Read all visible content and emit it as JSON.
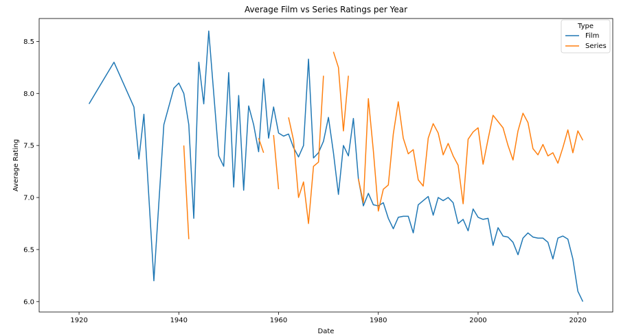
{
  "chart_data": {
    "type": "line",
    "title": "Average Film vs Series Ratings per Year",
    "xlabel": "Date",
    "ylabel": "Average Rating",
    "xlim": [
      1912,
      2027
    ],
    "ylim": [
      5.9,
      8.72
    ],
    "x_ticks": [
      1920,
      1940,
      1960,
      1980,
      2000,
      2020
    ],
    "y_ticks": [
      6.0,
      6.5,
      7.0,
      7.5,
      8.0,
      8.5
    ],
    "x_tick_labels": [
      "1920",
      "1940",
      "1960",
      "1980",
      "2000",
      "2020"
    ],
    "y_tick_labels": [
      "6.0",
      "6.5",
      "7.0",
      "7.5",
      "8.0",
      "8.5"
    ],
    "legend": {
      "title": "Type",
      "placement": "top-right"
    },
    "series": [
      {
        "name": "Film",
        "color": "#1f77b4",
        "segments": [
          [
            [
              1922,
              7.9
            ],
            [
              1927,
              8.3
            ],
            [
              1931,
              7.87
            ],
            [
              1932,
              7.37
            ],
            [
              1933,
              7.8
            ],
            [
              1935,
              6.2
            ],
            [
              1937,
              7.7
            ],
            [
              1939,
              8.05
            ],
            [
              1940,
              8.1
            ],
            [
              1941,
              8.0
            ],
            [
              1942,
              7.7
            ],
            [
              1943,
              6.8
            ],
            [
              1944,
              8.3
            ],
            [
              1945,
              7.9
            ],
            [
              1946,
              8.6
            ],
            [
              1948,
              7.4
            ],
            [
              1949,
              7.3
            ],
            [
              1950,
              8.2
            ],
            [
              1951,
              7.1
            ],
            [
              1952,
              7.98
            ],
            [
              1953,
              7.07
            ],
            [
              1954,
              7.88
            ],
            [
              1955,
              7.7
            ],
            [
              1956,
              7.44
            ],
            [
              1957,
              8.14
            ],
            [
              1958,
              7.57
            ],
            [
              1959,
              7.87
            ],
            [
              1960,
              7.62
            ],
            [
              1961,
              7.59
            ],
            [
              1962,
              7.61
            ],
            [
              1963,
              7.48
            ],
            [
              1964,
              7.39
            ],
            [
              1965,
              7.5
            ],
            [
              1966,
              8.33
            ],
            [
              1967,
              7.38
            ],
            [
              1968,
              7.43
            ],
            [
              1969,
              7.54
            ],
            [
              1970,
              7.77
            ],
            [
              1971,
              7.43
            ],
            [
              1972,
              7.03
            ],
            [
              1973,
              7.5
            ],
            [
              1974,
              7.4
            ],
            [
              1975,
              7.76
            ],
            [
              1976,
              7.18
            ],
            [
              1977,
              6.92
            ],
            [
              1978,
              7.04
            ],
            [
              1979,
              6.93
            ],
            [
              1980,
              6.92
            ],
            [
              1981,
              6.95
            ],
            [
              1982,
              6.8
            ],
            [
              1983,
              6.7
            ],
            [
              1984,
              6.81
            ],
            [
              1985,
              6.82
            ],
            [
              1986,
              6.82
            ],
            [
              1987,
              6.66
            ],
            [
              1988,
              6.93
            ],
            [
              1989,
              6.97
            ],
            [
              1990,
              7.01
            ],
            [
              1991,
              6.83
            ],
            [
              1992,
              7.0
            ],
            [
              1993,
              6.97
            ],
            [
              1994,
              7.0
            ],
            [
              1995,
              6.95
            ],
            [
              1996,
              6.75
            ],
            [
              1997,
              6.79
            ],
            [
              1998,
              6.68
            ],
            [
              1999,
              6.89
            ],
            [
              2000,
              6.81
            ],
            [
              2001,
              6.79
            ],
            [
              2002,
              6.8
            ],
            [
              2003,
              6.54
            ],
            [
              2004,
              6.71
            ],
            [
              2005,
              6.63
            ],
            [
              2006,
              6.62
            ],
            [
              2007,
              6.57
            ],
            [
              2008,
              6.45
            ],
            [
              2009,
              6.61
            ],
            [
              2010,
              6.66
            ],
            [
              2011,
              6.62
            ],
            [
              2012,
              6.61
            ],
            [
              2013,
              6.61
            ],
            [
              2014,
              6.57
            ],
            [
              2015,
              6.41
            ],
            [
              2016,
              6.61
            ],
            [
              2017,
              6.63
            ],
            [
              2018,
              6.6
            ],
            [
              2019,
              6.41
            ],
            [
              2020,
              6.1
            ],
            [
              2021,
              6.0
            ]
          ]
        ]
      },
      {
        "name": "Series",
        "color": "#ff7f0e",
        "segments": [
          [
            [
              1941,
              7.5
            ],
            [
              1942,
              6.6
            ]
          ],
          [
            [
              1956,
              7.57
            ],
            [
              1957,
              7.43
            ]
          ],
          [
            [
              1959,
              7.6
            ],
            [
              1960,
              7.08
            ]
          ],
          [
            [
              1962,
              7.77
            ],
            [
              1963,
              7.55
            ],
            [
              1964,
              7.0
            ],
            [
              1965,
              7.15
            ],
            [
              1966,
              6.75
            ],
            [
              1967,
              7.3
            ],
            [
              1968,
              7.34
            ],
            [
              1969,
              8.17
            ]
          ],
          [
            [
              1971,
              8.4
            ],
            [
              1972,
              8.25
            ],
            [
              1973,
              7.64
            ],
            [
              1974,
              8.17
            ]
          ],
          [
            [
              1976,
              7.18
            ],
            [
              1977,
              6.95
            ],
            [
              1978,
              7.95
            ],
            [
              1979,
              7.45
            ],
            [
              1980,
              6.87
            ],
            [
              1981,
              7.08
            ],
            [
              1982,
              7.12
            ],
            [
              1983,
              7.61
            ],
            [
              1984,
              7.92
            ],
            [
              1985,
              7.57
            ],
            [
              1986,
              7.42
            ],
            [
              1987,
              7.46
            ],
            [
              1988,
              7.17
            ],
            [
              1989,
              7.11
            ],
            [
              1990,
              7.57
            ],
            [
              1991,
              7.71
            ],
            [
              1992,
              7.62
            ],
            [
              1993,
              7.41
            ],
            [
              1994,
              7.52
            ],
            [
              1995,
              7.4
            ],
            [
              1996,
              7.31
            ],
            [
              1997,
              6.94
            ],
            [
              1998,
              7.56
            ],
            [
              1999,
              7.63
            ],
            [
              2000,
              7.67
            ],
            [
              2001,
              7.32
            ],
            [
              2002,
              7.56
            ],
            [
              2003,
              7.79
            ],
            [
              2004,
              7.73
            ],
            [
              2005,
              7.67
            ],
            [
              2006,
              7.5
            ],
            [
              2007,
              7.36
            ],
            [
              2008,
              7.64
            ],
            [
              2009,
              7.81
            ],
            [
              2010,
              7.72
            ],
            [
              2011,
              7.47
            ],
            [
              2012,
              7.41
            ],
            [
              2013,
              7.51
            ],
            [
              2014,
              7.4
            ],
            [
              2015,
              7.43
            ],
            [
              2016,
              7.33
            ],
            [
              2017,
              7.48
            ],
            [
              2018,
              7.65
            ],
            [
              2019,
              7.43
            ],
            [
              2020,
              7.64
            ],
            [
              2021,
              7.55
            ]
          ]
        ]
      }
    ]
  }
}
